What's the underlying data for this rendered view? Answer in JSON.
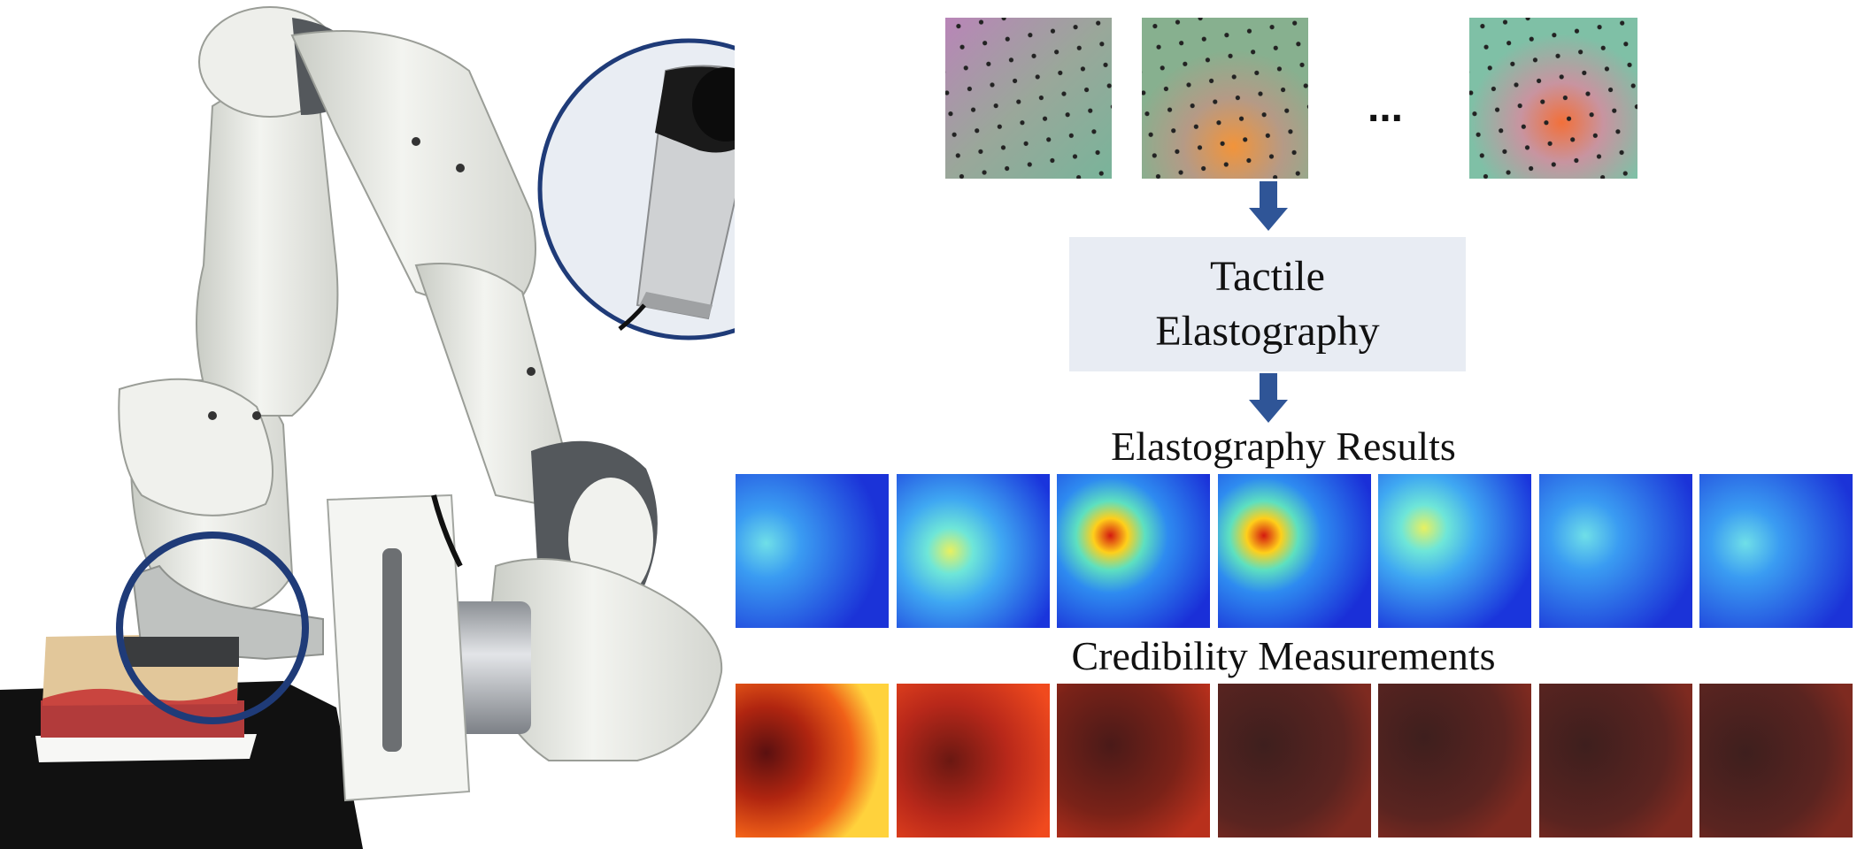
{
  "colors": {
    "arrow": "#2f5597",
    "box_fill": "#e8ecf3",
    "circle_stroke": "#1f3b78",
    "inset_fill": "#e9edf3"
  },
  "labels": {
    "ellipsis": "...",
    "process_box": "Tactile Elastography",
    "elastography_title": "Elastography Results",
    "credibility_title": "Credibility Measurements"
  },
  "icons": {
    "robot": "robot-arm-icon",
    "sensor": "tactile-sensor-icon",
    "arrow": "arrow-down-icon"
  },
  "elastography_maps": [
    {
      "hot_level": 0.45
    },
    {
      "hot_level": 0.55
    },
    {
      "hot_level": 1.0
    },
    {
      "hot_level": 1.0
    },
    {
      "hot_level": 0.6
    },
    {
      "hot_level": 0.4
    },
    {
      "hot_level": 0.35
    }
  ],
  "credibility_maps": [
    {
      "brightness": 1.0
    },
    {
      "brightness": 0.8
    },
    {
      "brightness": 0.55
    },
    {
      "brightness": 0.45
    },
    {
      "brightness": 0.45
    },
    {
      "brightness": 0.4
    },
    {
      "brightness": 0.35
    }
  ]
}
